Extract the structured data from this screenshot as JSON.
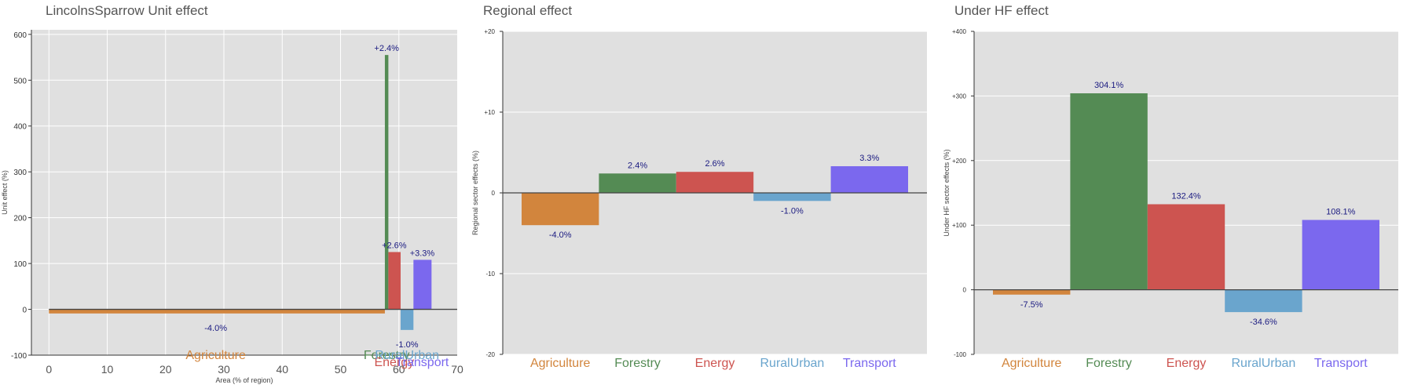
{
  "colors": {
    "Agriculture": "#d2853d",
    "Forestry": "#548b54",
    "Energy": "#cd5450",
    "RuralUrban": "#6aa5cd",
    "Transport": "#7b68ee",
    "panel_bg": "#e0e0e0",
    "label": "#1a1a80"
  },
  "chart_data": [
    {
      "type": "bar",
      "title": "LincolnsSparrow Unit effect",
      "xlabel": "Area (% of region)",
      "ylabel": "Unit effect (%)",
      "xlim": [
        -3,
        70
      ],
      "ylim": [
        -100,
        610
      ],
      "xticks": [
        0,
        10,
        20,
        30,
        40,
        50,
        60,
        70
      ],
      "yticks": [
        -100,
        0,
        100,
        200,
        300,
        400,
        500,
        600
      ],
      "bars": [
        {
          "sector": "Agriculture",
          "x0": 0,
          "x1": 57.6,
          "value": -9,
          "label": "-4.0%"
        },
        {
          "sector": "Forestry",
          "x0": 57.6,
          "x1": 58.2,
          "value": 555,
          "label": "+2.4%"
        },
        {
          "sector": "Energy",
          "x0": 58.2,
          "x1": 60.3,
          "value": 125,
          "label": "+2.6%"
        },
        {
          "sector": "RuralUrban",
          "x0": 60.3,
          "x1": 62.5,
          "value": -45,
          "label": "-1.0%"
        },
        {
          "sector": "Transport",
          "x0": 62.5,
          "x1": 65.6,
          "value": 108,
          "label": "+3.3%"
        }
      ]
    },
    {
      "type": "bar",
      "title": "Regional effect",
      "ylabel": "Regional sector effects (%)",
      "ylim": [
        -20,
        20
      ],
      "yticks": [
        "-20",
        "-10",
        "0",
        "+10",
        "+20"
      ],
      "categories": [
        "Agriculture",
        "Forestry",
        "Energy",
        "RuralUrban",
        "Transport"
      ],
      "values": [
        -4.0,
        2.4,
        2.6,
        -1.0,
        3.3
      ],
      "labels": [
        "-4.0%",
        "2.4%",
        "2.6%",
        "-1.0%",
        "3.3%"
      ]
    },
    {
      "type": "bar",
      "title": "Under HF effect",
      "ylabel": "Under HF sector effects (%)",
      "ylim": [
        -100,
        400
      ],
      "yticks": [
        "-100",
        "0",
        "+100",
        "+200",
        "+300",
        "+400"
      ],
      "categories": [
        "Agriculture",
        "Forestry",
        "Energy",
        "RuralUrban",
        "Transport"
      ],
      "values": [
        -7.5,
        304.1,
        132.4,
        -34.6,
        108.1
      ],
      "labels": [
        "-7.5%",
        "304.1%",
        "132.4%",
        "-34.6%",
        "108.1%"
      ]
    }
  ]
}
